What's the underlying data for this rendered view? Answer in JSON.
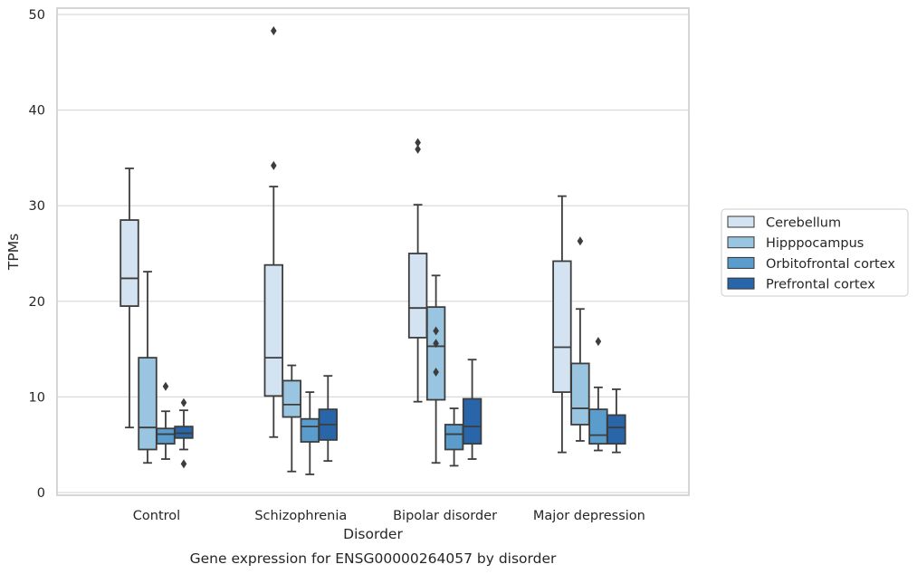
{
  "chart_data": {
    "type": "boxplot",
    "title": "",
    "caption": "Gene expression for ENSG00000264057 by disorder",
    "xlabel": "Disorder",
    "ylabel": "TPMs",
    "ylim": [
      -0.4,
      50.6
    ],
    "yticks": [
      0,
      10,
      20,
      30,
      40,
      50
    ],
    "ytick_labels": [
      "0",
      "10",
      "20",
      "30",
      "40",
      "50"
    ],
    "grid": "horizontal",
    "legend_position": "right",
    "categories": [
      "Control",
      "Schizophrenia",
      "Bipolar disorder",
      "Major depression"
    ],
    "series": [
      {
        "name": "Cerebellum",
        "color": "#d4e3f2",
        "boxes": [
          {
            "low": 6.8,
            "q1": 19.5,
            "median": 22.4,
            "q3": 28.5,
            "high": 33.9,
            "outliers": []
          },
          {
            "low": 5.8,
            "q1": 10.1,
            "median": 14.1,
            "q3": 23.8,
            "high": 32.0,
            "outliers": [
              48.3,
              34.2
            ]
          },
          {
            "low": 9.5,
            "q1": 16.2,
            "median": 19.3,
            "q3": 25.0,
            "high": 30.1,
            "outliers": [
              36.6,
              35.9
            ]
          },
          {
            "low": 4.2,
            "q1": 10.5,
            "median": 15.2,
            "q3": 24.2,
            "high": 31.0,
            "outliers": []
          }
        ]
      },
      {
        "name": "Hipppocampus",
        "color": "#9ac5e0",
        "boxes": [
          {
            "low": 3.1,
            "q1": 4.5,
            "median": 6.8,
            "q3": 14.1,
            "high": 23.1,
            "outliers": []
          },
          {
            "low": 2.2,
            "q1": 7.9,
            "median": 9.2,
            "q3": 11.7,
            "high": 13.3,
            "outliers": []
          },
          {
            "low": 3.1,
            "q1": 9.7,
            "median": 15.3,
            "q3": 19.4,
            "high": 22.7,
            "outliers": [
              16.9,
              15.6,
              12.6
            ]
          },
          {
            "low": 5.4,
            "q1": 7.1,
            "median": 8.8,
            "q3": 13.5,
            "high": 19.2,
            "outliers": [
              26.3
            ]
          }
        ]
      },
      {
        "name": "Orbitofrontal cortex",
        "color": "#5a9ccc",
        "boxes": [
          {
            "low": 3.5,
            "q1": 5.1,
            "median": 6.1,
            "q3": 6.7,
            "high": 8.5,
            "outliers": [
              11.1
            ]
          },
          {
            "low": 1.9,
            "q1": 5.3,
            "median": 6.9,
            "q3": 7.7,
            "high": 10.5,
            "outliers": []
          },
          {
            "low": 2.8,
            "q1": 4.5,
            "median": 6.1,
            "q3": 7.1,
            "high": 8.8,
            "outliers": []
          },
          {
            "low": 4.4,
            "q1": 5.1,
            "median": 6.0,
            "q3": 8.7,
            "high": 11.0,
            "outliers": [
              15.8
            ]
          }
        ]
      },
      {
        "name": "Prefrontal cortex",
        "color": "#2866a9",
        "boxes": [
          {
            "low": 4.5,
            "q1": 5.7,
            "median": 6.2,
            "q3": 6.9,
            "high": 8.6,
            "outliers": [
              9.4,
              3.0
            ]
          },
          {
            "low": 3.3,
            "q1": 5.5,
            "median": 7.1,
            "q3": 8.7,
            "high": 12.2,
            "outliers": []
          },
          {
            "low": 3.5,
            "q1": 5.1,
            "median": 6.9,
            "q3": 9.8,
            "high": 13.9,
            "outliers": []
          },
          {
            "low": 4.2,
            "q1": 5.1,
            "median": 6.8,
            "q3": 8.1,
            "high": 10.8,
            "outliers": []
          }
        ]
      }
    ]
  }
}
